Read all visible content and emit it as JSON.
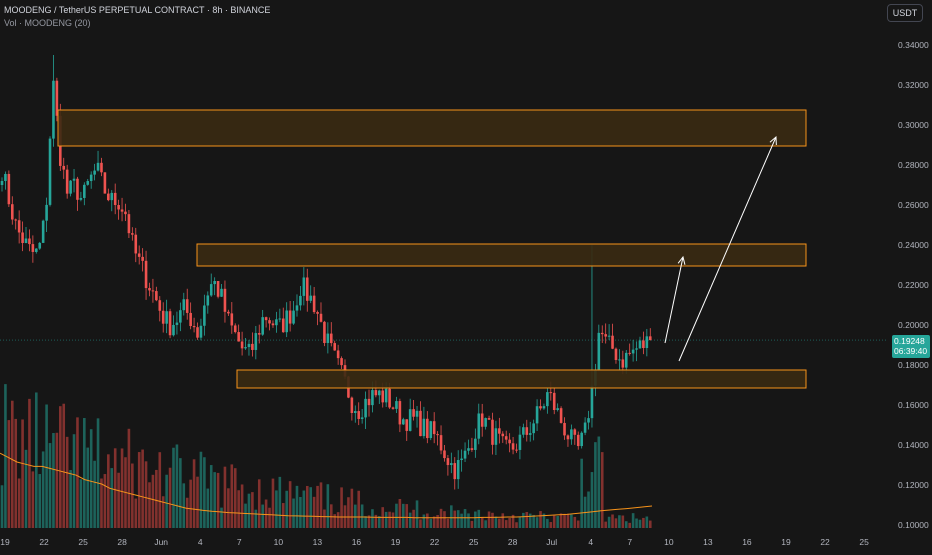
{
  "header": {
    "title": "MOODENG / TetherUS PERPETUAL CONTRACT · 8h · BINANCE",
    "volume_label": "Vol · MOODENG (20)"
  },
  "currency_button": "USDT",
  "last_price": {
    "value": "0.19248",
    "countdown": "06:39:40"
  },
  "colors": {
    "background": "#161616",
    "up": "#26a69a",
    "down": "#ef5350",
    "zone_fill": "#3a2a12",
    "zone_border": "#f7931a",
    "vol_ma": "#f7931a",
    "arrow": "#ffffff"
  },
  "chart_data": {
    "type": "candlestick",
    "y_axis": {
      "ticks": [
        "0.34000",
        "0.32000",
        "0.30000",
        "0.28000",
        "0.26000",
        "0.24000",
        "0.22000",
        "0.20000",
        "0.18000",
        "0.16000",
        "0.14000",
        "0.12000",
        "0.10000"
      ],
      "range": [
        0.0995,
        0.3492
      ]
    },
    "x_axis": {
      "ticks": [
        "19",
        "22",
        "25",
        "28",
        "Jun",
        "4",
        "7",
        "10",
        "13",
        "16",
        "19",
        "22",
        "25",
        "28",
        "Jul",
        "4",
        "7",
        "10",
        "13",
        "16",
        "19",
        "22",
        "25"
      ]
    },
    "zones": [
      {
        "low": 0.2895,
        "high": 0.3075
      },
      {
        "low": 0.2295,
        "high": 0.2405
      },
      {
        "low": 0.1685,
        "high": 0.1775
      }
    ],
    "projection_arrows": [
      {
        "from": [
          "Jul 4",
          0.1905
        ],
        "to": [
          "Jul 6",
          0.2335
        ]
      },
      {
        "from": [
          "Jul 5",
          0.1875
        ],
        "to": [
          "Jul 17",
          0.2935
        ]
      }
    ],
    "price_path": [
      0.278,
      0.262,
      0.248,
      0.242,
      0.236,
      0.236,
      0.255,
      0.322,
      0.285,
      0.265,
      0.27,
      0.262,
      0.272,
      0.278,
      0.268,
      0.262,
      0.262,
      0.256,
      0.238,
      0.23,
      0.222,
      0.214,
      0.205,
      0.2,
      0.203,
      0.208,
      0.203,
      0.195,
      0.215,
      0.222,
      0.215,
      0.202,
      0.195,
      0.188,
      0.185,
      0.195,
      0.205,
      0.202,
      0.198,
      0.203,
      0.208,
      0.22,
      0.215,
      0.21,
      0.198,
      0.188,
      0.18,
      0.172,
      0.162,
      0.158,
      0.162,
      0.165,
      0.165,
      0.163,
      0.158,
      0.153,
      0.153,
      0.152,
      0.148,
      0.146,
      0.142,
      0.135,
      0.128,
      0.13,
      0.138,
      0.148,
      0.154,
      0.147,
      0.143,
      0.137,
      0.138,
      0.142,
      0.146,
      0.152,
      0.158,
      0.166,
      0.158,
      0.15,
      0.143,
      0.137,
      0.145,
      0.168,
      0.198,
      0.19,
      0.188,
      0.182,
      0.185,
      0.188,
      0.19,
      0.1925
    ],
    "volume_ma_path": [
      34,
      32,
      30,
      29,
      28,
      28,
      27,
      26,
      25,
      24,
      22,
      21,
      20,
      18,
      17,
      16,
      15,
      14,
      13,
      12,
      11,
      10,
      9,
      8.5,
      8,
      7.6,
      7.3,
      7,
      6.8,
      6.6,
      6.4,
      6.2,
      6,
      5.8,
      5.6,
      5.5,
      5.4,
      5.3,
      5.2,
      5.1,
      5,
      5,
      5,
      5,
      4.9,
      4.8,
      4.8,
      4.8,
      4.8,
      4.7,
      4.7,
      4.7,
      4.7,
      4.7,
      4.7,
      4.7,
      4.7,
      4.8,
      4.8,
      4.9,
      5,
      5,
      5.2,
      5.4,
      5.6,
      5.8,
      6,
      6.2,
      6.6,
      7,
      7.4,
      7.8,
      8.2,
      8.5,
      8.8,
      9.2,
      9.6,
      10
    ]
  }
}
